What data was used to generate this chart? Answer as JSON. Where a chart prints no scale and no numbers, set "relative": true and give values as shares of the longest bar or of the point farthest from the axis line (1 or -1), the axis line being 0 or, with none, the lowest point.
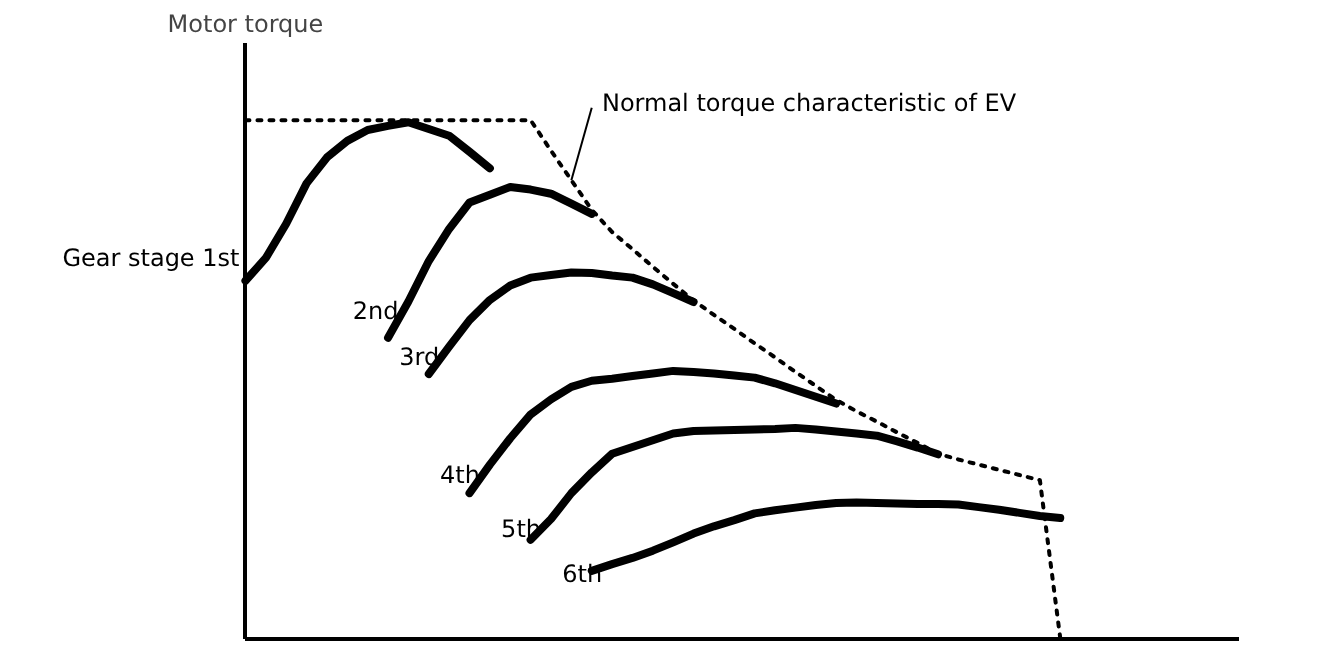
{
  "chart_data": {
    "type": "line",
    "relative": true,
    "ylabel": "Motor torque",
    "line_style": "solid",
    "marker": "none",
    "grid": false,
    "categories": [
      null,
      null,
      null,
      null,
      null,
      null,
      null,
      null,
      null,
      null,
      null,
      null,
      null,
      null,
      null,
      null,
      null,
      null,
      null,
      null,
      null,
      null,
      null,
      null,
      null,
      null,
      null,
      null,
      null,
      null,
      null,
      null,
      null,
      null,
      null,
      null,
      null,
      null,
      null,
      null,
      null
    ],
    "series": [
      {
        "name": "Normal torque characteristic of EV",
        "color": "#000000",
        "line_style": "dotted",
        "values": [
          1,
          1,
          1,
          1,
          1,
          1,
          1,
          1,
          1,
          1,
          1,
          1,
          1,
          1,
          1,
          0.941,
          0.884,
          0.827,
          0.784,
          0.751,
          0.717,
          0.684,
          0.652,
          0.624,
          0.597,
          0.569,
          0.542,
          0.514,
          0.487,
          0.46,
          0.438,
          0.418,
          0.397,
          0.377,
          0.356,
          0.345,
          0.335,
          0.325,
          0.315,
          0.305,
          0
        ]
      },
      {
        "name": "Gear stage 1st",
        "color": "#000000",
        "values": [
          0.69,
          0.734,
          0.8,
          0.878,
          0.928,
          0.96,
          0.981,
          0.989,
          0.996,
          0.983,
          0.97,
          0.939,
          0.907,
          null,
          null,
          null,
          null,
          null,
          null,
          null,
          null,
          null,
          null,
          null,
          null,
          null,
          null,
          null,
          null,
          null,
          null,
          null,
          null,
          null,
          null,
          null,
          null,
          null,
          null,
          null,
          null
        ]
      },
      {
        "name": "2nd",
        "color": "#000000",
        "values": [
          null,
          null,
          null,
          null,
          null,
          null,
          null,
          0.58,
          0.65,
          0.728,
          0.79,
          0.841,
          0.856,
          0.871,
          0.866,
          0.858,
          0.839,
          0.819,
          null,
          null,
          null,
          null,
          null,
          null,
          null,
          null,
          null,
          null,
          null,
          null,
          null,
          null,
          null,
          null,
          null,
          null,
          null,
          null,
          null,
          null,
          null
        ]
      },
      {
        "name": "3rd",
        "color": "#000000",
        "values": [
          null,
          null,
          null,
          null,
          null,
          null,
          null,
          null,
          null,
          0.51,
          0.563,
          0.614,
          0.653,
          0.681,
          0.696,
          0.701,
          0.706,
          0.705,
          0.7,
          0.696,
          0.683,
          0.666,
          0.649,
          null,
          null,
          null,
          null,
          null,
          null,
          null,
          null,
          null,
          null,
          null,
          null,
          null,
          null,
          null,
          null,
          null,
          null
        ]
      },
      {
        "name": "4th",
        "color": "#000000",
        "values": [
          null,
          null,
          null,
          null,
          null,
          null,
          null,
          null,
          null,
          null,
          null,
          0.28,
          0.335,
          0.386,
          0.432,
          0.461,
          0.485,
          0.497,
          0.501,
          0.506,
          0.511,
          0.516,
          0.514,
          0.511,
          0.507,
          0.503,
          0.492,
          0.479,
          0.466,
          0.453,
          null,
          null,
          null,
          null,
          null,
          null,
          null,
          null,
          null,
          null,
          null
        ]
      },
      {
        "name": "5th",
        "color": "#000000",
        "values": [
          null,
          null,
          null,
          null,
          null,
          null,
          null,
          null,
          null,
          null,
          null,
          null,
          null,
          null,
          0.19,
          0.23,
          0.28,
          0.32,
          0.356,
          0.369,
          0.382,
          0.395,
          0.4,
          0.401,
          0.402,
          0.403,
          0.404,
          0.406,
          0.403,
          0.399,
          0.395,
          0.391,
          0.38,
          0.368,
          0.355,
          null,
          null,
          null,
          null,
          null,
          null
        ]
      },
      {
        "name": "6th",
        "color": "#000000",
        "values": [
          null,
          null,
          null,
          null,
          null,
          null,
          null,
          null,
          null,
          null,
          null,
          null,
          null,
          null,
          null,
          null,
          null,
          0.13,
          0.143,
          0.155,
          0.169,
          0.185,
          0.202,
          0.216,
          0.228,
          0.241,
          0.247,
          0.252,
          0.257,
          0.261,
          0.262,
          0.261,
          0.26,
          0.259,
          0.259,
          0.258,
          0.253,
          0.248,
          0.242,
          0.236,
          0.232
        ]
      }
    ]
  }
}
